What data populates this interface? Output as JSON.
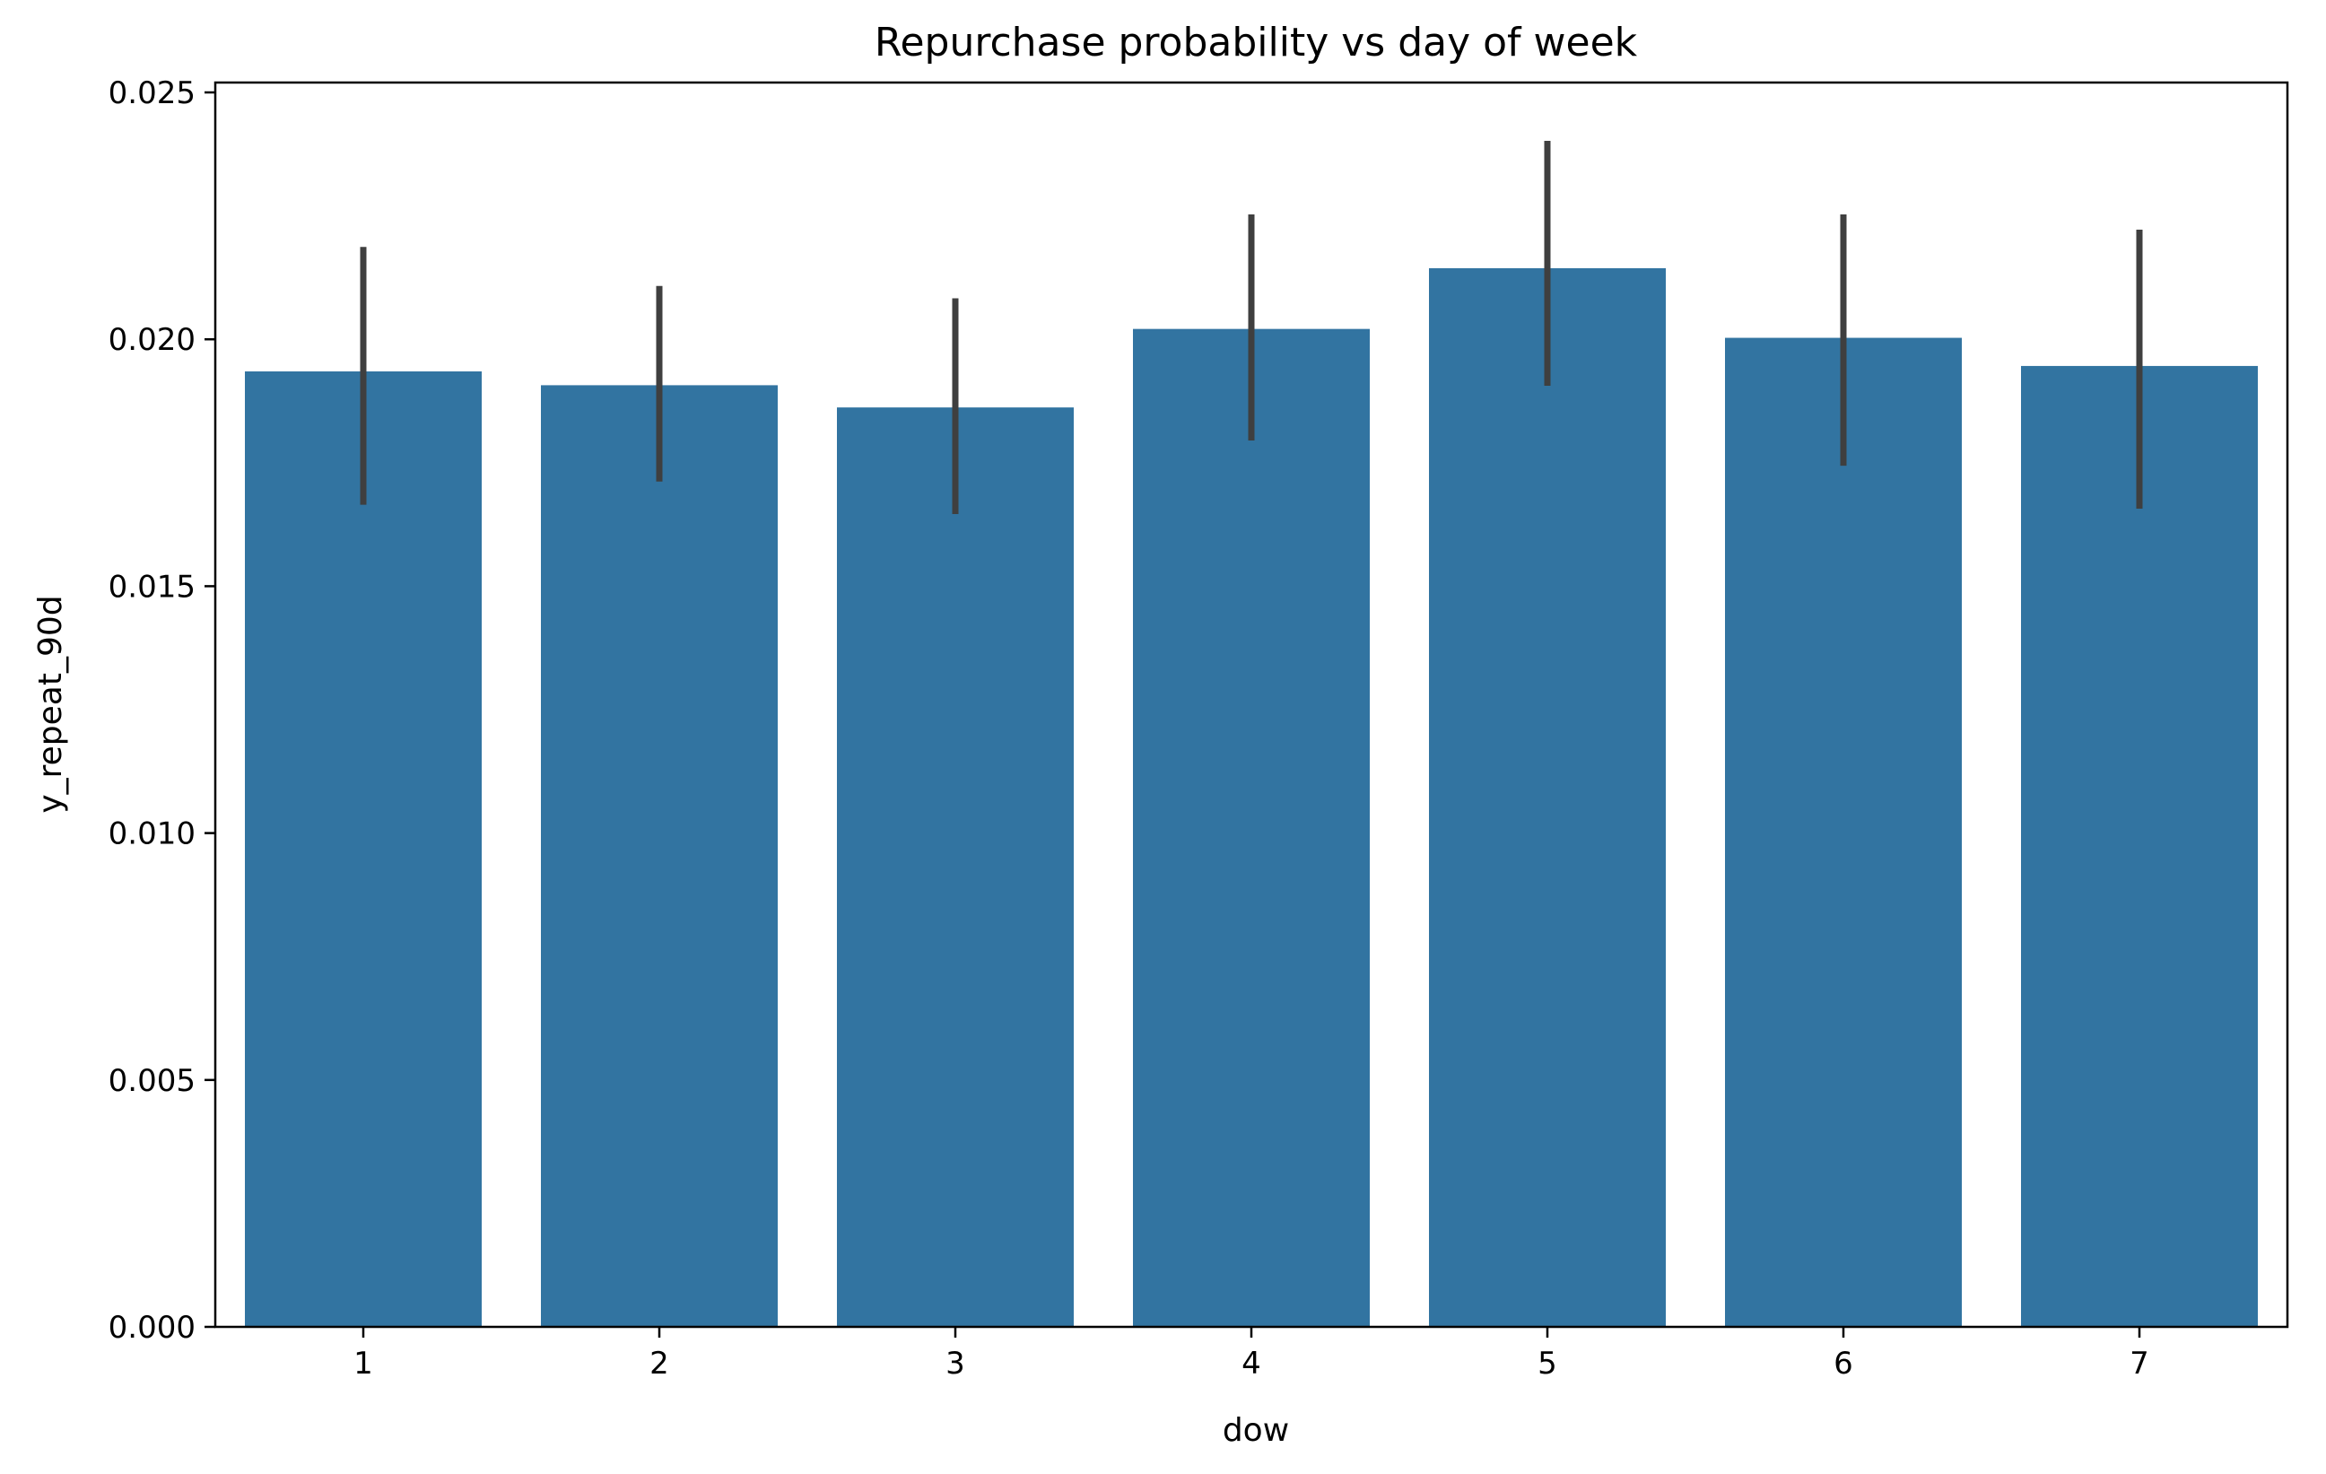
{
  "chart_data": {
    "type": "bar",
    "title": "Repurchase probability vs day of week",
    "xlabel": "dow",
    "ylabel": "y_repeat_90d",
    "categories": [
      "1",
      "2",
      "3",
      "4",
      "5",
      "6",
      "7"
    ],
    "values": [
      0.01935,
      0.01907,
      0.01862,
      0.02021,
      0.02144,
      0.02003,
      0.01946
    ],
    "error_low": [
      0.01665,
      0.01712,
      0.01646,
      0.01795,
      0.01906,
      0.01744,
      0.01657
    ],
    "error_high": [
      0.02187,
      0.02108,
      0.02083,
      0.02253,
      0.02402,
      0.02253,
      0.02222
    ],
    "ylim": [
      0,
      0.0252
    ],
    "yticks": [
      0.0,
      0.005,
      0.01,
      0.015,
      0.02,
      0.025
    ],
    "ytick_labels": [
      "0.000",
      "0.005",
      "0.010",
      "0.015",
      "0.020",
      "0.025"
    ],
    "grid": false,
    "legend": false,
    "colors": {
      "bar": "#3274a1",
      "error_bar": "#3f3f3f",
      "axis": "#000000"
    }
  }
}
